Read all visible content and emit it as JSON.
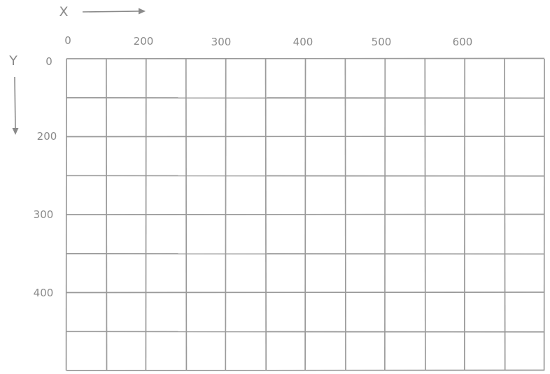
{
  "axes": {
    "x_label": "X",
    "y_label": "Y",
    "x_ticks": [
      "0",
      "200",
      "300",
      "400",
      "500",
      "600"
    ],
    "y_ticks": [
      "0",
      "200",
      "300",
      "400"
    ]
  },
  "grid": {
    "columns": 12,
    "rows": 8,
    "line_color": "#9a9a9a",
    "text_color": "#8a8a8a"
  }
}
